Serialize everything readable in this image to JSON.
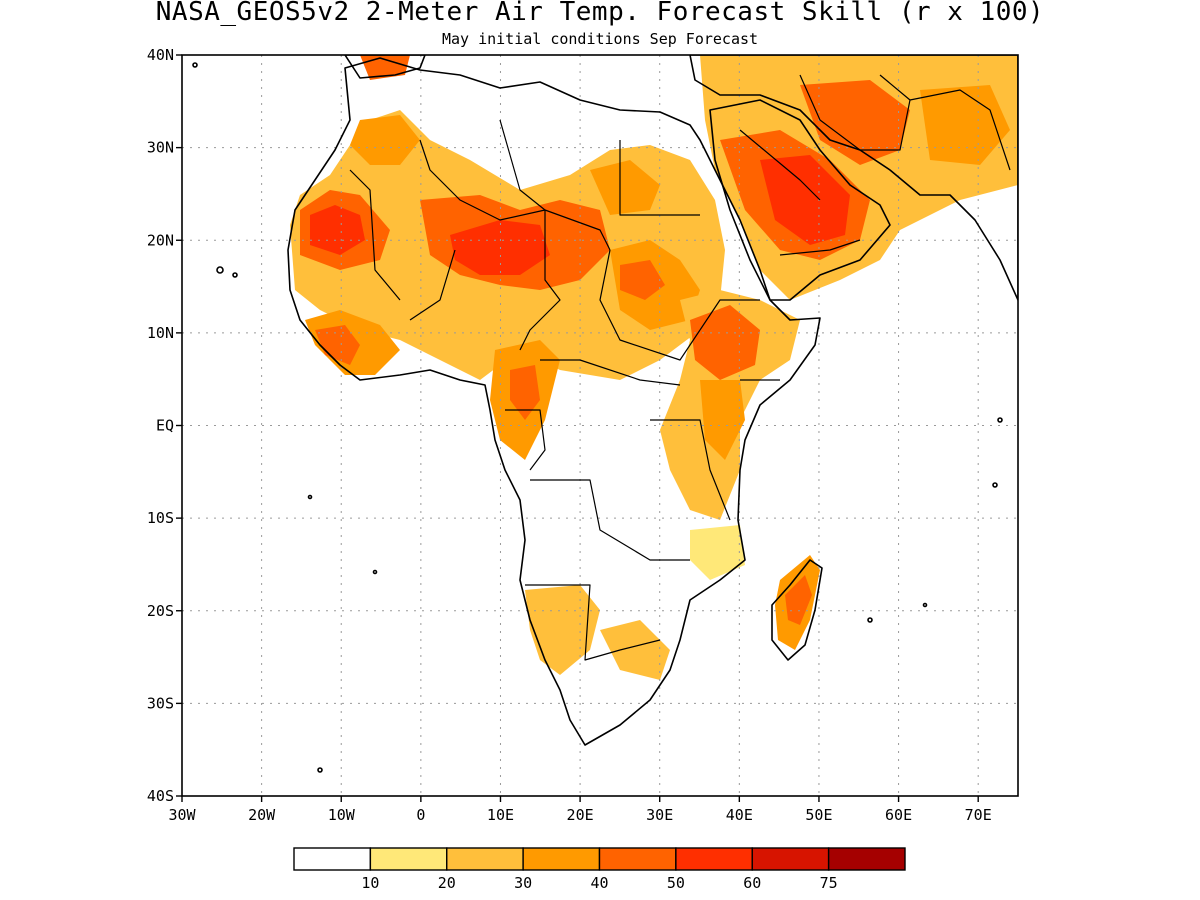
{
  "title": "NASA_GEOS5v2 2-Meter Air Temp. Forecast Skill (r x 100)",
  "subtitle": "May initial conditions  Sep Forecast",
  "lat_labels": [
    "40N",
    "30N",
    "20N",
    "10N",
    "EQ",
    "10S",
    "20S",
    "30S",
    "40S"
  ],
  "lon_labels": [
    "30W",
    "20W",
    "10W",
    "0",
    "10E",
    "20E",
    "30E",
    "40E",
    "50E",
    "60E",
    "70E"
  ],
  "colorbar": {
    "colors": [
      "#ffffff",
      "#ffe878",
      "#ffbf3b",
      "#ff9a00",
      "#ff6300",
      "#ff2f00",
      "#d71400",
      "#a50000"
    ],
    "labels": [
      "10",
      "20",
      "30",
      "40",
      "50",
      "60",
      "75"
    ]
  },
  "colors": {
    "land_outline": "#000000",
    "grid": "#9a9a9a"
  }
}
